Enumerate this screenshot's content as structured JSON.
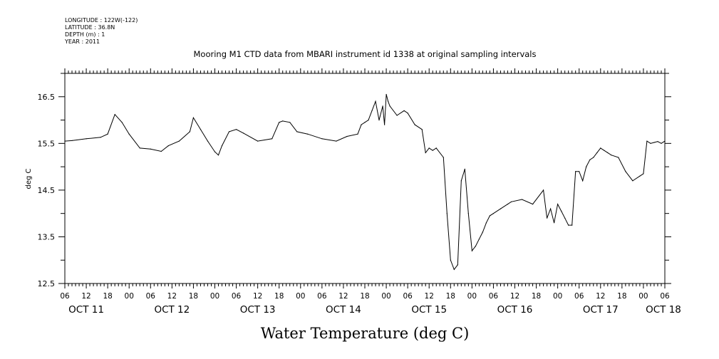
{
  "meta": {
    "longitude": "LONGITUDE : 122W(-122)",
    "latitude": "LATITUDE : 36.8N",
    "depth": "DEPTH (m) : 1",
    "year": "YEAR : 2011"
  },
  "chart_data": {
    "type": "line",
    "title": "Mooring M1 CTD data from MBARI instrument id 1338 at original sampling intervals",
    "xlabel": "Water Temperature (deg C)",
    "ylabel": "deg C",
    "ylim": [
      12.5,
      17.0
    ],
    "y_ticks": [
      "12.5",
      "13.5",
      "14.5",
      "15.5",
      "16.5"
    ],
    "xlim_hours": [
      "OCT 11 06",
      "OCT 18 06"
    ],
    "hour_tick_labels": [
      "06",
      "12",
      "18",
      "00",
      "06",
      "12",
      "18",
      "00",
      "06",
      "12",
      "18",
      "00",
      "06",
      "12",
      "18",
      "00",
      "06",
      "12",
      "18",
      "00",
      "06",
      "12",
      "18",
      "00",
      "06",
      "12",
      "18",
      "00",
      "06"
    ],
    "day_labels": [
      "OCT 11",
      "OCT 12",
      "OCT 13",
      "OCT 14",
      "OCT 15",
      "OCT 16",
      "OCT 17",
      "OCT 18"
    ],
    "grid": false,
    "series": [
      {
        "x": [
          "OCT 11 06:00",
          "OCT 11 08:00",
          "OCT 11 12:00",
          "OCT 11 16:00",
          "OCT 11 18:00",
          "OCT 11 20:00",
          "OCT 11 22:00",
          "OCT 12 00:00",
          "OCT 12 03:00",
          "OCT 12 06:00",
          "OCT 12 09:00",
          "OCT 12 11:00",
          "OCT 12 14:00",
          "OCT 12 17:00",
          "OCT 12 18:00",
          "OCT 12 20:00",
          "OCT 12 22:00",
          "OCT 13 00:00",
          "OCT 13 01:00",
          "OCT 13 02:00",
          "OCT 13 04:00",
          "OCT 13 06:00",
          "OCT 13 08:00",
          "OCT 13 12:00",
          "OCT 13 16:00",
          "OCT 13 18:00",
          "OCT 13 19:00",
          "OCT 13 21:00",
          "OCT 13 23:00",
          "OCT 14 02:00",
          "OCT 14 06:00",
          "OCT 14 10:00",
          "OCT 14 13:00",
          "OCT 14 16:00",
          "OCT 14 17:00",
          "OCT 14 18:00",
          "OCT 14 19:00",
          "OCT 14 20:00",
          "OCT 14 21:00",
          "OCT 14 22:00",
          "OCT 14 23:00",
          "OCT 14 23:30",
          "OCT 15 00:00",
          "OCT 15 00:30",
          "OCT 15 01:00",
          "OCT 15 03:00",
          "OCT 15 05:00",
          "OCT 15 06:00",
          "OCT 15 08:00",
          "OCT 15 10:00",
          "OCT 15 11:00",
          "OCT 15 12:00",
          "OCT 15 13:00",
          "OCT 15 14:00",
          "OCT 15 16:00",
          "OCT 15 17:00",
          "OCT 15 18:00",
          "OCT 15 19:00",
          "OCT 15 20:00",
          "OCT 15 21:00",
          "OCT 15 22:00",
          "OCT 15 23:00",
          "OCT 16 00:00",
          "OCT 16 01:00",
          "OCT 16 02:00",
          "OCT 16 03:00",
          "OCT 16 04:00",
          "OCT 16 05:00",
          "OCT 16 06:00",
          "OCT 16 08:00",
          "OCT 16 10:00",
          "OCT 16 11:00",
          "OCT 16 14:00",
          "OCT 16 17:00",
          "OCT 16 20:00",
          "OCT 16 21:00",
          "OCT 16 22:00",
          "OCT 16 23:00",
          "OCT 17 00:00",
          "OCT 17 01:00",
          "OCT 17 02:00",
          "OCT 17 03:00",
          "OCT 17 04:00",
          "OCT 17 05:00",
          "OCT 17 06:00",
          "OCT 17 07:00",
          "OCT 17 08:00",
          "OCT 17 09:00",
          "OCT 17 10:00",
          "OCT 17 11:00",
          "OCT 17 12:00",
          "OCT 17 13:00",
          "OCT 17 14:00",
          "OCT 17 15:00",
          "OCT 17 17:00",
          "OCT 17 19:00",
          "OCT 17 21:00",
          "OCT 17 23:00",
          "OCT 18 00:00",
          "OCT 18 01:00",
          "OCT 18 02:00",
          "OCT 18 03:00",
          "OCT 18 04:00",
          "OCT 18 05:00",
          "OCT 18 06:00"
        ],
        "values": [
          15.55,
          15.56,
          15.6,
          15.63,
          15.7,
          16.12,
          15.95,
          15.7,
          15.4,
          15.38,
          15.33,
          15.45,
          15.55,
          15.75,
          16.05,
          15.8,
          15.55,
          15.32,
          15.25,
          15.45,
          15.75,
          15.8,
          15.72,
          15.55,
          15.6,
          15.95,
          15.98,
          15.95,
          15.75,
          15.7,
          15.6,
          15.55,
          15.65,
          15.7,
          15.9,
          15.95,
          16.0,
          16.2,
          16.4,
          16.0,
          16.3,
          15.9,
          16.55,
          16.4,
          16.3,
          16.1,
          16.2,
          16.15,
          15.9,
          15.8,
          15.3,
          15.4,
          15.35,
          15.4,
          15.2,
          14.0,
          13.0,
          12.8,
          12.9,
          14.7,
          14.95,
          14.0,
          13.2,
          13.3,
          13.45,
          13.6,
          13.8,
          13.95,
          14.0,
          14.1,
          14.2,
          14.25,
          14.3,
          14.2,
          14.5,
          13.9,
          14.1,
          13.8,
          14.2,
          14.05,
          13.9,
          13.75,
          13.75,
          14.9,
          14.9,
          14.7,
          15.0,
          15.15,
          15.2,
          15.3,
          15.4,
          15.35,
          15.3,
          15.25,
          15.2,
          14.9,
          14.7,
          14.8,
          14.85,
          15.55,
          15.5,
          15.52,
          15.54,
          15.5,
          15.55
        ]
      }
    ]
  }
}
